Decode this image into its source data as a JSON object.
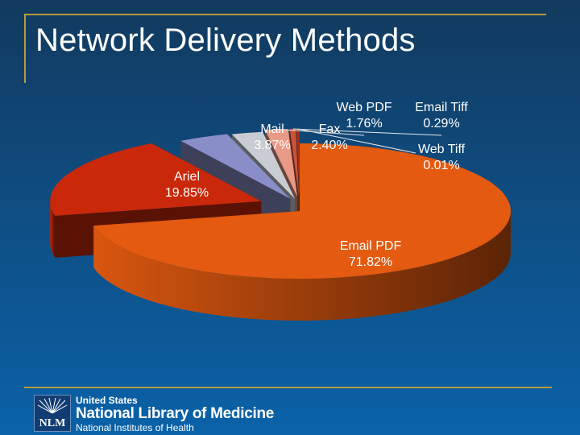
{
  "slide": {
    "title": "Network Delivery Methods"
  },
  "chart_data": {
    "type": "pie",
    "title": "",
    "series": [
      {
        "label": "Email PDF",
        "value": 71.82,
        "display": "71.82%",
        "color": "#e35a10"
      },
      {
        "label": "Ariel",
        "value": 19.85,
        "display": "19.85%",
        "color": "#c9280a"
      },
      {
        "label": "Mail",
        "value": 3.87,
        "display": "3.87%",
        "color": "#8a8ec8"
      },
      {
        "label": "Fax",
        "value": 2.4,
        "display": "2.40%",
        "color": "#c9ccd2"
      },
      {
        "label": "Web PDF",
        "value": 1.76,
        "display": "1.76%",
        "color": "#e89a86"
      },
      {
        "label": "Email Tiff",
        "value": 0.29,
        "display": "0.29%",
        "color": "#c8553a"
      },
      {
        "label": "Web Tiff",
        "value": 0.01,
        "display": "0.01%",
        "color": "#a03018"
      }
    ],
    "style": "3d-exploded"
  },
  "footer": {
    "logo_abbrev": "NLM",
    "line1": "United States",
    "line2": "National Library of Medicine",
    "line3": "National Institutes of Health"
  }
}
